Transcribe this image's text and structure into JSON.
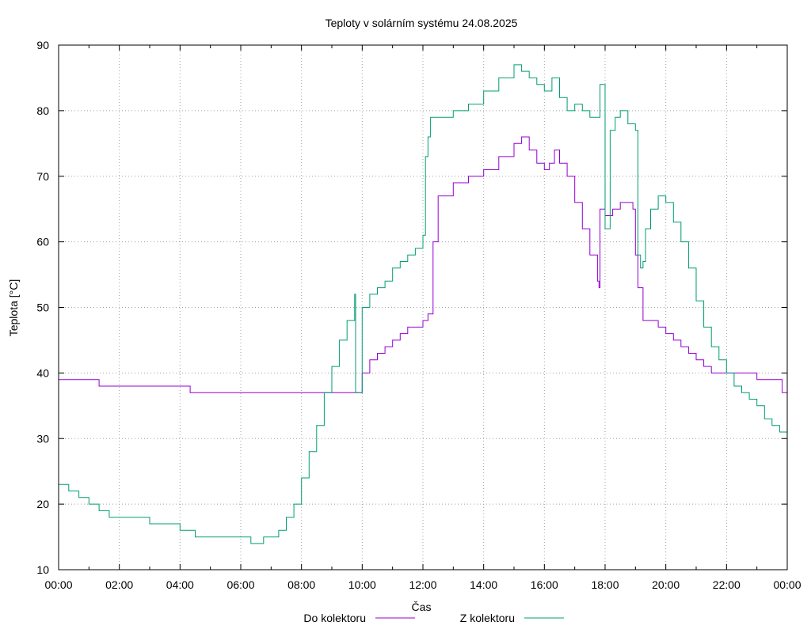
{
  "chart_data": {
    "type": "line",
    "title": "Teploty v solárním systému 24.08.2025",
    "xlabel": "Čas",
    "ylabel": "Teplota [°C]",
    "xlim": [
      "00:00",
      "24:00"
    ],
    "ylim": [
      10,
      90
    ],
    "x_ticks": [
      "00:00",
      "02:00",
      "04:00",
      "06:00",
      "08:00",
      "10:00",
      "12:00",
      "14:00",
      "16:00",
      "18:00",
      "20:00",
      "22:00",
      "00:00"
    ],
    "y_ticks": [
      10,
      20,
      30,
      40,
      50,
      60,
      70,
      80,
      90
    ],
    "grid": true,
    "legend_position": "bottom",
    "series": [
      {
        "name": "Do kolektoru",
        "color": "#9400d3",
        "x": [
          "00:00",
          "01:15",
          "01:20",
          "04:15",
          "04:20",
          "07:55",
          "08:45",
          "09:40",
          "10:00",
          "10:15",
          "10:30",
          "10:45",
          "11:00",
          "11:15",
          "11:30",
          "11:45",
          "12:00",
          "12:10",
          "12:20",
          "12:30",
          "13:00",
          "13:30",
          "14:00",
          "14:30",
          "15:00",
          "15:15",
          "15:30",
          "15:45",
          "16:00",
          "16:10",
          "16:20",
          "16:30",
          "16:45",
          "17:00",
          "17:15",
          "17:30",
          "17:45",
          "17:48",
          "17:50",
          "18:00",
          "18:15",
          "18:30",
          "18:45",
          "18:55",
          "19:00",
          "19:05",
          "19:15",
          "19:30",
          "19:45",
          "20:00",
          "20:15",
          "20:30",
          "20:45",
          "21:00",
          "21:15",
          "21:30",
          "22:00",
          "22:30",
          "23:00",
          "23:45",
          "23:50",
          "24:00"
        ],
        "values": [
          39,
          39,
          38,
          38,
          37,
          37,
          37,
          37,
          40,
          42,
          43,
          44,
          45,
          46,
          47,
          47,
          48,
          49,
          60,
          67,
          69,
          70,
          71,
          73,
          75,
          76,
          74,
          72,
          71,
          72,
          74,
          72,
          70,
          66,
          62,
          58,
          54,
          53,
          65,
          64,
          65,
          66,
          66,
          65,
          58,
          53,
          48,
          48,
          47,
          46,
          45,
          44,
          43,
          42,
          41,
          40,
          40,
          40,
          39,
          39,
          37,
          37
        ]
      },
      {
        "name": "Z kolektoru",
        "color": "#009e73",
        "x": [
          "00:00",
          "00:20",
          "00:40",
          "01:00",
          "01:20",
          "01:40",
          "02:00",
          "02:30",
          "03:00",
          "03:30",
          "04:00",
          "04:30",
          "05:00",
          "05:30",
          "06:00",
          "06:20",
          "06:30",
          "06:45",
          "07:00",
          "07:15",
          "07:30",
          "07:45",
          "08:00",
          "08:15",
          "08:30",
          "08:45",
          "09:00",
          "09:15",
          "09:30",
          "09:45",
          "09:47",
          "10:00",
          "10:15",
          "10:30",
          "10:45",
          "11:00",
          "11:15",
          "11:30",
          "11:45",
          "12:00",
          "12:05",
          "12:10",
          "12:15",
          "12:30",
          "13:00",
          "13:30",
          "14:00",
          "14:30",
          "15:00",
          "15:15",
          "15:30",
          "15:45",
          "16:00",
          "16:15",
          "16:30",
          "16:45",
          "17:00",
          "17:15",
          "17:30",
          "17:45",
          "17:50",
          "18:00",
          "18:10",
          "18:20",
          "18:30",
          "18:45",
          "19:00",
          "19:05",
          "19:10",
          "19:15",
          "19:20",
          "19:30",
          "19:45",
          "20:00",
          "20:15",
          "20:30",
          "20:45",
          "21:00",
          "21:15",
          "21:30",
          "21:45",
          "22:00",
          "22:15",
          "22:30",
          "22:45",
          "23:00",
          "23:15",
          "23:30",
          "23:45",
          "24:00"
        ],
        "values": [
          23,
          22,
          21,
          20,
          19,
          18,
          18,
          18,
          17,
          17,
          16,
          15,
          15,
          15,
          15,
          14,
          14,
          15,
          15,
          16,
          18,
          20,
          24,
          28,
          32,
          37,
          41,
          45,
          48,
          52,
          37,
          50,
          52,
          53,
          54,
          56,
          57,
          58,
          59,
          61,
          73,
          76,
          79,
          79,
          80,
          81,
          83,
          85,
          87,
          86,
          85,
          84,
          83,
          85,
          82,
          80,
          81,
          80,
          79,
          79,
          84,
          62,
          77,
          79,
          80,
          78,
          77,
          58,
          56,
          57,
          62,
          65,
          67,
          66,
          63,
          60,
          56,
          51,
          47,
          44,
          42,
          40,
          38,
          37,
          36,
          35,
          33,
          32,
          31,
          30
        ]
      }
    ]
  }
}
